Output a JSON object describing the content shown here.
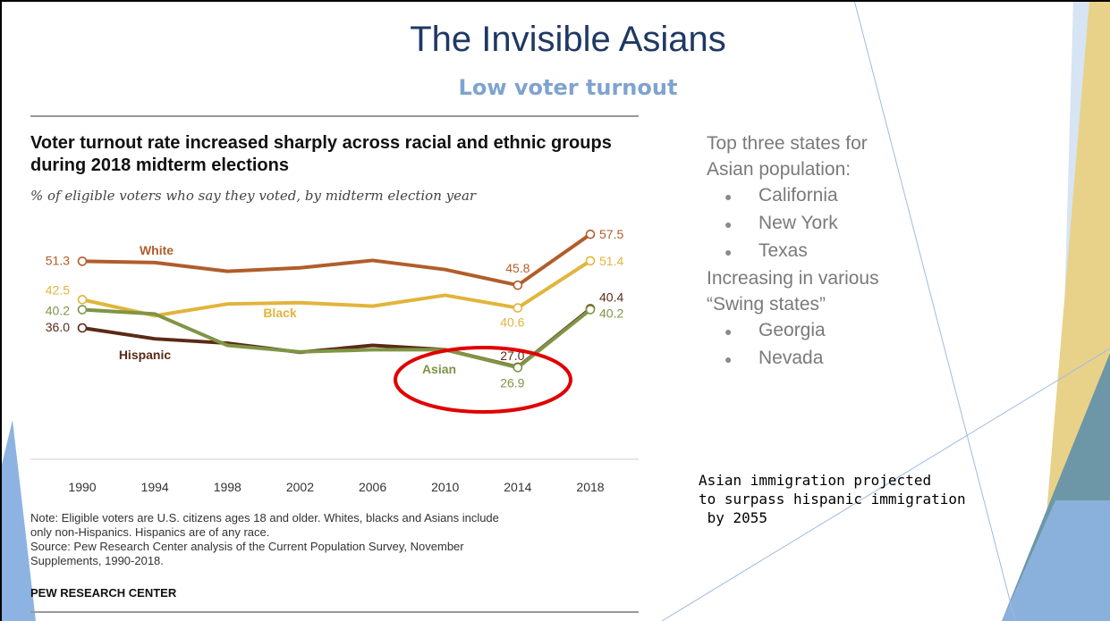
{
  "slide": {
    "title": "The Invisible Asians",
    "subtitle": "Low voter turnout"
  },
  "chart_data": {
    "type": "line",
    "title": "Voter turnout rate increased sharply across racial and ethnic groups during 2018 midterm elections",
    "subtitle": "% of eligible voters who say they voted, by midterm election year",
    "x": [
      "1990",
      "1994",
      "1998",
      "2002",
      "2006",
      "2010",
      "2014",
      "2018"
    ],
    "ylim": [
      20,
      60
    ],
    "grid": false,
    "series": [
      {
        "name": "White",
        "color": "#b15d2b",
        "values": [
          51.3,
          51.0,
          49.0,
          49.8,
          51.5,
          49.4,
          45.8,
          57.5
        ],
        "start_label": "51.3",
        "end_label": "57.5",
        "label_2014": "45.8"
      },
      {
        "name": "Black",
        "color": "#e2b43b",
        "values": [
          42.5,
          38.8,
          41.5,
          41.8,
          41.0,
          43.5,
          40.6,
          51.4
        ],
        "start_label": "42.5",
        "end_label": "51.4",
        "label_2014": "40.6"
      },
      {
        "name": "Hispanic",
        "color": "#5b2a17",
        "values": [
          36.0,
          33.5,
          32.5,
          30.4,
          32.0,
          31.0,
          27.0,
          40.4
        ],
        "start_label": "36.0",
        "end_label": "40.4",
        "label_2014": "27.0"
      },
      {
        "name": "Asian",
        "color": "#7f9544",
        "values": [
          40.2,
          39.2,
          32.0,
          30.5,
          31.0,
          31.0,
          26.9,
          40.2
        ],
        "start_label": "40.2",
        "end_label": "40.2",
        "label_2014": "26.9"
      }
    ],
    "highlight": {
      "shape": "ellipse",
      "color": "#e00000",
      "around": "Asian 2014"
    },
    "note_lines": [
      "Note: Eligible voters are U.S. citizens ages 18 and older. Whites, blacks and Asians include",
      "only non-Hispanics. Hispanics are of any race.",
      "Source: Pew Research Center analysis of the Current Population Survey, November",
      "Supplements, 1990-2018."
    ],
    "credit": "PEW RESEARCH CENTER"
  },
  "side": {
    "heading_lines": [
      "Top three states for",
      "Asian population:"
    ],
    "states": [
      "California",
      "New York",
      "Texas"
    ],
    "swing_lines": [
      "Increasing in various",
      "“Swing states”"
    ],
    "swing_states": [
      "Georgia",
      "Nevada"
    ],
    "bullet": "●",
    "note_lines": [
      "Asian immigration projected",
      "to surpass hispanic immigration",
      " by 2055"
    ]
  },
  "theme": {
    "title_color": "#1f3864",
    "subtitle_color": "#7fa3cf",
    "blue_accent": "#8db3e2",
    "gold_accent": "#e8d28a",
    "teal_accent": "#6d97a6"
  }
}
